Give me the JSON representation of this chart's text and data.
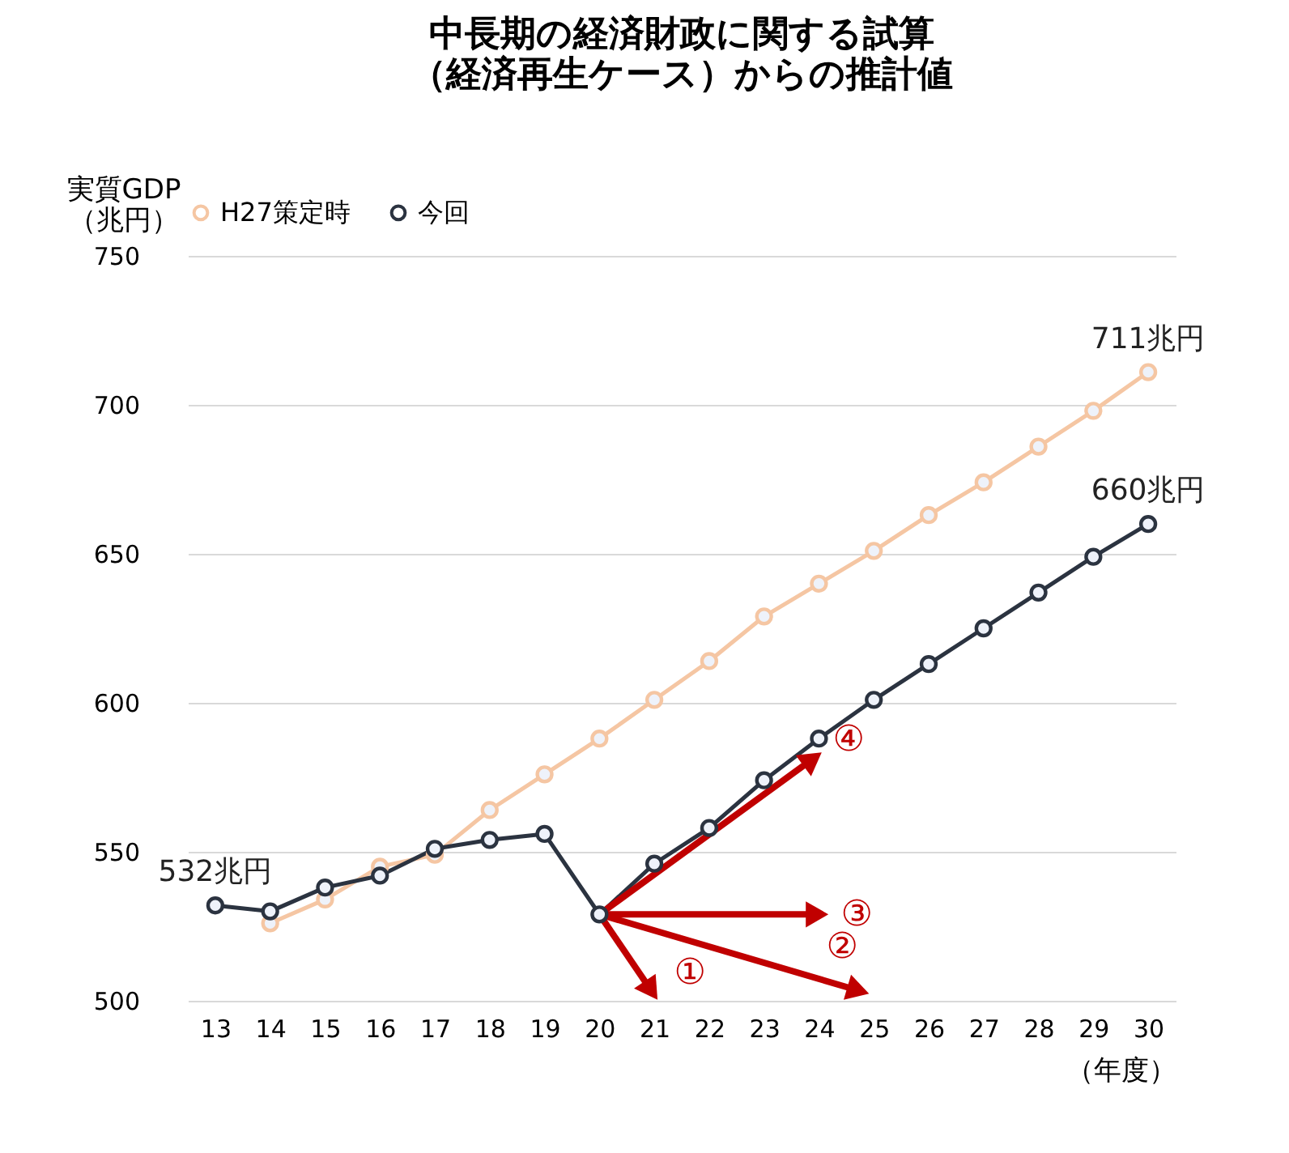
{
  "chart_data": {
    "type": "line",
    "title": "中長期の経済財政に関する試算",
    "subtitle": "（経済再生ケース）からの推計値",
    "ylabel": "実質GDP\n（兆円）",
    "xlabel": "（年度）",
    "categories": [
      "13",
      "14",
      "15",
      "16",
      "17",
      "18",
      "19",
      "20",
      "21",
      "22",
      "23",
      "24",
      "25",
      "26",
      "27",
      "28",
      "29",
      "30"
    ],
    "series": [
      {
        "name": "H27策定時",
        "color": "#f5c6a3",
        "values": [
          null,
          526,
          534,
          545,
          549,
          564,
          576,
          588,
          601,
          614,
          629,
          640,
          651,
          663,
          674,
          686,
          698,
          711
        ]
      },
      {
        "name": "今回",
        "color": "#2b3340",
        "values": [
          532,
          530,
          538,
          542,
          551,
          554,
          556,
          529,
          546,
          558,
          574,
          588,
          601,
          613,
          625,
          637,
          649,
          660
        ]
      }
    ],
    "ylim": [
      500,
      750
    ],
    "yticks": [
      500,
      550,
      600,
      650,
      700,
      750
    ],
    "grid": "y",
    "legend": "top",
    "marker": "circle",
    "line_style": "solid",
    "annotations": [
      {
        "text": "711兆円",
        "x": "30",
        "y": 711
      },
      {
        "text": "660兆円",
        "x": "30",
        "y": 660
      },
      {
        "text": "532兆円",
        "x": "13",
        "y": 532
      },
      {
        "text": "①",
        "x": "20",
        "y": 529
      },
      {
        "text": "②",
        "x": "20",
        "y": 529
      },
      {
        "text": "③",
        "x": "20",
        "y": 529
      },
      {
        "text": "④",
        "x": "20",
        "y": 529
      }
    ]
  }
}
